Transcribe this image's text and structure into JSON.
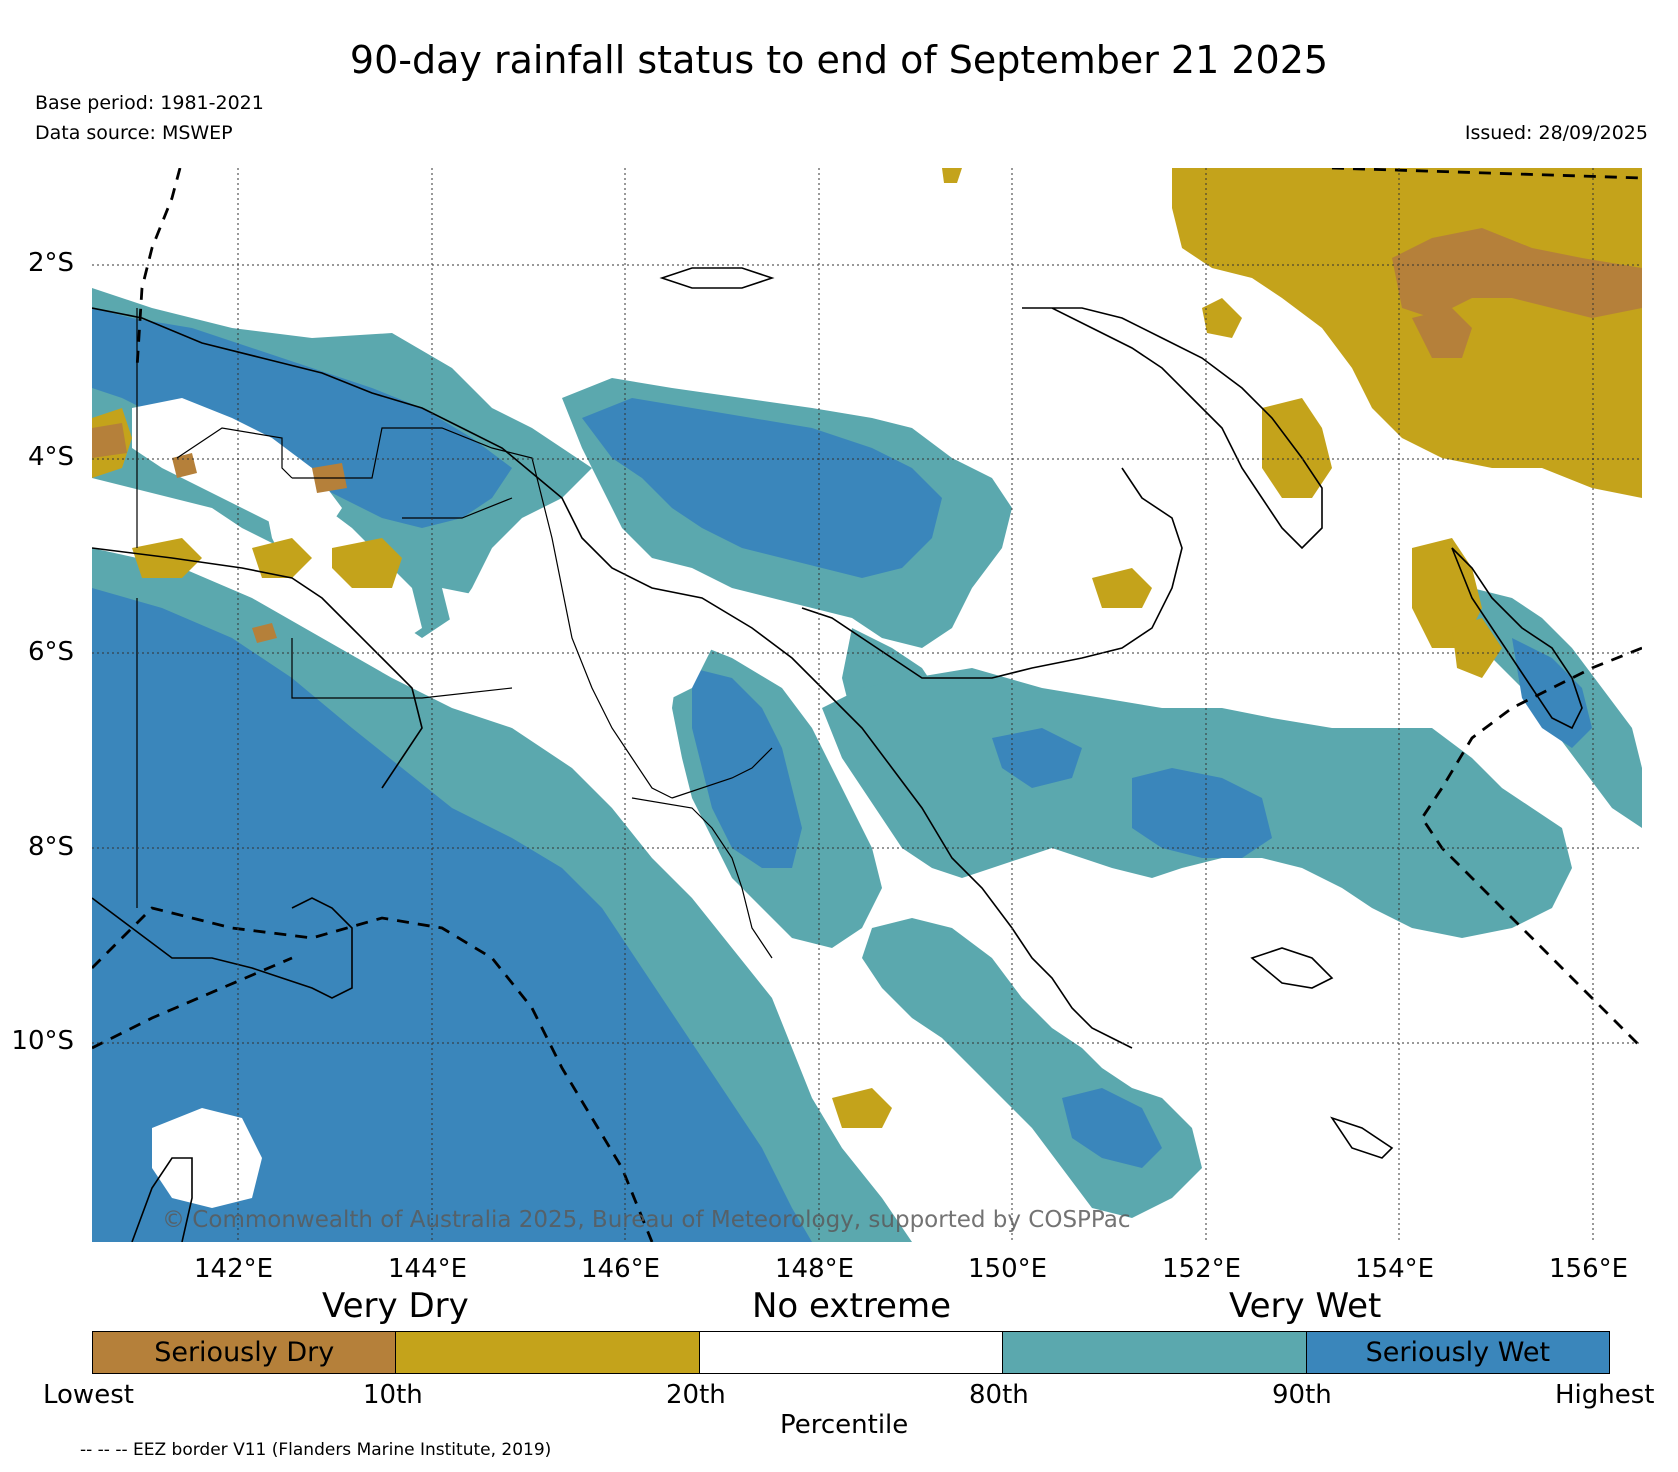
{
  "title": "90-day rainfall status to end of September 21 2025",
  "base_period": "Base period: 1981-2021",
  "data_source": "Data source: MSWEP",
  "issued": "Issued: 28/09/2025",
  "copyright": "© Commonwealth of Australia 2025, Bureau of Meteorology, supported by COSPPac",
  "lat_labels": [
    "2°S",
    "4°S",
    "6°S",
    "8°S",
    "10°S"
  ],
  "lon_labels": [
    "142°E",
    "144°E",
    "146°E",
    "148°E",
    "150°E",
    "152°E",
    "154°E",
    "156°E"
  ],
  "category_labels": [
    "Very Dry",
    "No extreme",
    "Very Wet"
  ],
  "legend": [
    {
      "label": "Seriously Dry",
      "color": "#B5803A"
    },
    {
      "label": "",
      "color": "#C4A31B"
    },
    {
      "label": "",
      "color": "#FFFFFF"
    },
    {
      "label": "",
      "color": "#5BA8AE"
    },
    {
      "label": "Seriously Wet",
      "color": "#3A86BB"
    }
  ],
  "percentile_ticks": [
    "Lowest",
    "10th",
    "20th",
    "80th",
    "90th",
    "Highest"
  ],
  "percentile_axis_label": "Percentile",
  "footnote": "-- -- -- EEZ border V11 (Flanders Marine Institute, 2019)",
  "colors": {
    "seriously_dry": "#B5803A",
    "very_dry": "#C4A31B",
    "no_extreme": "#FFFFFF",
    "very_wet": "#5BA8AE",
    "seriously_wet": "#3A86BB"
  }
}
